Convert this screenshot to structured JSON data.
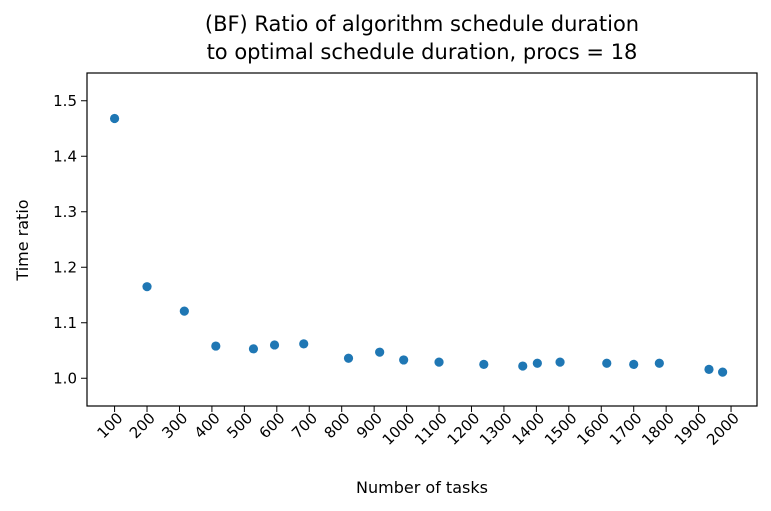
{
  "chart_data": {
    "type": "scatter",
    "title_line1": "(BF) Ratio of algorithm schedule duration",
    "title_line2": "to optimal schedule duration, procs = 18",
    "xlabel": "Number of tasks",
    "ylabel": "Time ratio",
    "xticks": [
      "100",
      "200",
      "300",
      "400",
      "500",
      "600",
      "700",
      "800",
      "900",
      "1000",
      "1100",
      "1200",
      "1300",
      "1400",
      "1500",
      "1600",
      "1700",
      "1800",
      "1900",
      "2000"
    ],
    "yticks": [
      "1.0",
      "1.1",
      "1.2",
      "1.3",
      "1.4",
      "1.5"
    ],
    "xlim": [
      15,
      2080
    ],
    "ylim": [
      0.95,
      1.55
    ],
    "color": "#1f77b4",
    "x": [
      100,
      200,
      315,
      412,
      528,
      593,
      683,
      821,
      917,
      991,
      1100,
      1238,
      1358,
      1403,
      1473,
      1617,
      1700,
      1779,
      1932,
      1974
    ],
    "y": [
      1.468,
      1.165,
      1.121,
      1.058,
      1.053,
      1.06,
      1.062,
      1.036,
      1.047,
      1.033,
      1.029,
      1.025,
      1.022,
      1.027,
      1.029,
      1.027,
      1.025,
      1.027,
      1.016,
      1.011
    ]
  }
}
